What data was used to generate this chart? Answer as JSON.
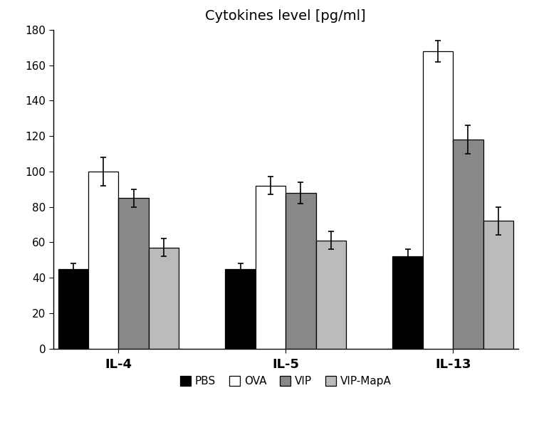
{
  "title": "Cytokines level [pg/ml]",
  "groups": [
    "IL-4",
    "IL-5",
    "IL-13"
  ],
  "series": [
    "PBS",
    "OVA",
    "VIP",
    "VIP-MapA"
  ],
  "values": {
    "PBS": [
      45,
      45,
      52
    ],
    "OVA": [
      100,
      92,
      168
    ],
    "VIP": [
      85,
      88,
      118
    ],
    "VIP-MapA": [
      57,
      61,
      72
    ]
  },
  "errors": {
    "PBS": [
      3,
      3,
      4
    ],
    "OVA": [
      8,
      5,
      6
    ],
    "VIP": [
      5,
      6,
      8
    ],
    "VIP-MapA": [
      5,
      5,
      8
    ]
  },
  "colors": {
    "PBS": "#000000",
    "OVA": "#ffffff",
    "VIP": "#888888",
    "VIP-MapA": "#bbbbbb"
  },
  "edge_colors": {
    "PBS": "#000000",
    "OVA": "#000000",
    "VIP": "#000000",
    "VIP-MapA": "#000000"
  },
  "ylim": [
    0,
    180
  ],
  "yticks": [
    0,
    20,
    40,
    60,
    80,
    100,
    120,
    140,
    160,
    180
  ],
  "bar_width": 0.13,
  "group_centers": [
    0.28,
    1.0,
    1.72
  ],
  "xlim": [
    0.0,
    2.0
  ]
}
